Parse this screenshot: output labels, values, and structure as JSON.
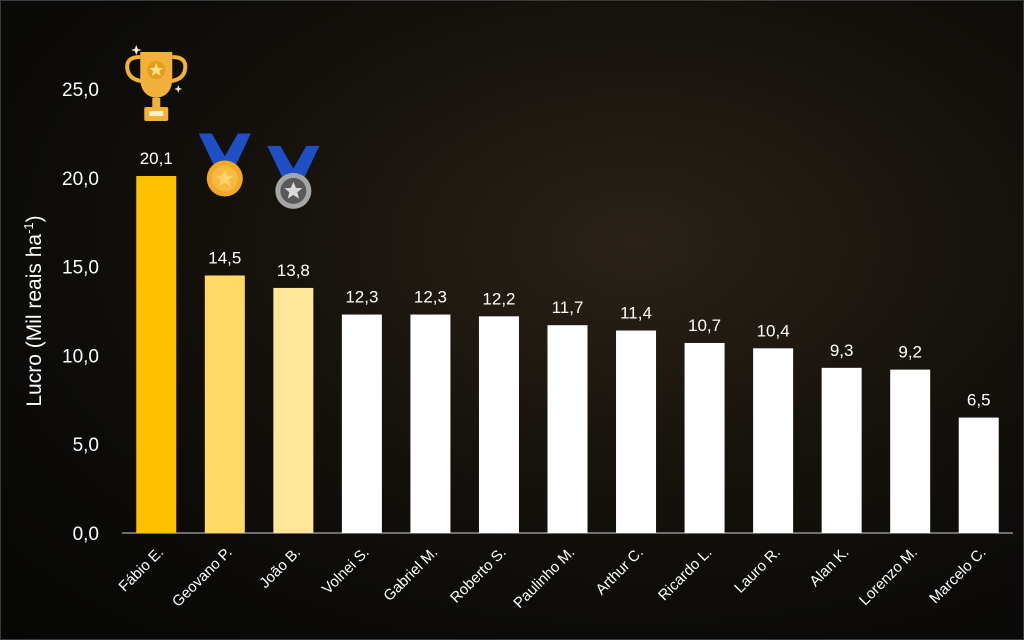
{
  "chart_data": {
    "type": "bar",
    "categories": [
      "Fábio E.",
      "Geovano P.",
      "João B.",
      "Volnei S.",
      "Gabriel M.",
      "Roberto S.",
      "Paulinho M.",
      "Arthur C.",
      "Ricardo L.",
      "Lauro R.",
      "Alan K.",
      "Lorenzo M.",
      "Marcelo C."
    ],
    "values": [
      20.1,
      14.5,
      13.8,
      12.3,
      12.3,
      12.2,
      11.7,
      11.4,
      10.7,
      10.4,
      9.3,
      9.2,
      6.5
    ],
    "value_labels": [
      "20,1",
      "14,5",
      "13,8",
      "12,3",
      "12,3",
      "12,2",
      "11,7",
      "11,4",
      "10,7",
      "10,4",
      "9,3",
      "9,2",
      "6,5"
    ],
    "bar_colors": [
      "#FFC000",
      "#FFD966",
      "#FFE699",
      "#FFFFFF",
      "#FFFFFF",
      "#FFFFFF",
      "#FFFFFF",
      "#FFFFFF",
      "#FFFFFF",
      "#FFFFFF",
      "#FFFFFF",
      "#FFFFFF",
      "#FFFFFF"
    ],
    "title": "",
    "xlabel": "",
    "ylabel_main": "Lucro (Mil reais ha",
    "ylabel_sup": "-1",
    "ylabel_end": ")",
    "ylim": [
      0,
      25
    ],
    "yticks": [
      0,
      5,
      10,
      15,
      20,
      25
    ],
    "ytick_labels": [
      "0,0",
      "5,0",
      "10,0",
      "15,0",
      "20,0",
      "25,0"
    ],
    "grid": false,
    "awards": [
      {
        "category": "Fábio E.",
        "icon": "trophy-icon",
        "color": "#F2B13A"
      },
      {
        "category": "Geovano P.",
        "icon": "gold-medal-icon",
        "color": "#F3A928",
        "ribbon": "#1F4FC4"
      },
      {
        "category": "João B.",
        "icon": "silver-medal-icon",
        "color": "#BFBFBF",
        "ribbon": "#1F4FC4"
      }
    ]
  }
}
